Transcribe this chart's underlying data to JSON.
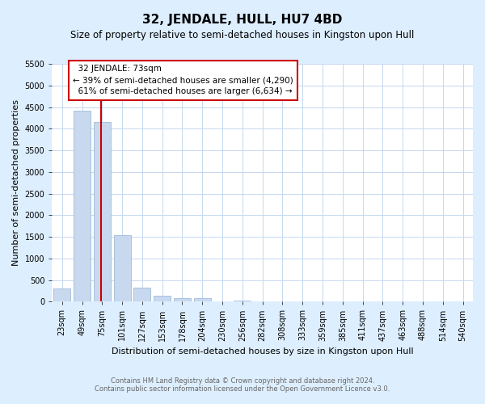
{
  "title": "32, JENDALE, HULL, HU7 4BD",
  "subtitle": "Size of property relative to semi-detached houses in Kingston upon Hull",
  "xlabel": "Distribution of semi-detached houses by size in Kingston upon Hull",
  "ylabel": "Number of semi-detached properties",
  "footer_line1": "Contains HM Land Registry data © Crown copyright and database right 2024.",
  "footer_line2": "Contains public sector information licensed under the Open Government Licence v3.0.",
  "bar_labels": [
    "23sqm",
    "49sqm",
    "75sqm",
    "101sqm",
    "127sqm",
    "153sqm",
    "178sqm",
    "204sqm",
    "230sqm",
    "256sqm",
    "282sqm",
    "308sqm",
    "333sqm",
    "359sqm",
    "385sqm",
    "411sqm",
    "437sqm",
    "463sqm",
    "488sqm",
    "514sqm",
    "540sqm"
  ],
  "bar_values": [
    295,
    4420,
    4160,
    1530,
    320,
    130,
    75,
    75,
    0,
    30,
    0,
    0,
    0,
    0,
    0,
    0,
    0,
    0,
    0,
    0,
    0
  ],
  "bar_color": "#c8d8ee",
  "bar_edge_color": "#a0bcd8",
  "property_sqm": 73,
  "property_label": "32 JENDALE: 73sqm",
  "pct_smaller": 39,
  "count_smaller": 4290,
  "pct_larger": 61,
  "count_larger": 6634,
  "line_color": "#cc0000",
  "box_edge_color": "#cc0000",
  "ylim_max": 5500,
  "yticks": [
    0,
    500,
    1000,
    1500,
    2000,
    2500,
    3000,
    3500,
    4000,
    4500,
    5000,
    5500
  ],
  "background_color": "#ddeeff",
  "plot_bg_color": "#ffffff",
  "grid_color": "#c5d8f0",
  "title_fontsize": 11,
  "subtitle_fontsize": 8.5,
  "tick_fontsize": 7,
  "label_fontsize": 8,
  "footer_fontsize": 6,
  "annot_fontsize": 7.5
}
